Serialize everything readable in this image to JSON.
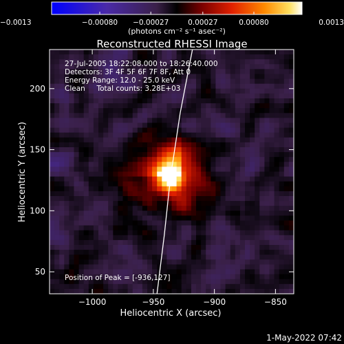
{
  "chart_data": {
    "type": "heatmap",
    "title": "Reconstructed RHESSI Image",
    "xlabel": "Heliocentric X (arcsec)",
    "ylabel": "Heliocentric Y (arcsec)",
    "xlim": [
      -1035,
      -835
    ],
    "ylim": [
      32,
      232
    ],
    "x_ticks": [
      -1000,
      -950,
      -900,
      -850
    ],
    "x_tick_labels": [
      "−1000",
      "−950",
      "−900",
      "−850"
    ],
    "y_ticks": [
      50,
      100,
      150,
      200
    ],
    "y_tick_labels": [
      "50",
      "100",
      "150",
      "200"
    ],
    "colorbar": {
      "range": [
        -0.0013,
        0.0013
      ],
      "ticks": [
        -0.0013,
        -0.0008,
        -0.00027,
        0.00027,
        0.0008,
        0.0013
      ],
      "tick_labels": [
        "−0.0013",
        "−0.00080",
        "−0.00027",
        "0.00027",
        "0.00080",
        "0.0013"
      ],
      "unit_label": "(photons cm⁻² s⁻¹ asec⁻²)"
    },
    "annotations": [
      "27-Jul-2005 18:22:08.000 to 18:26:40.000",
      "Detectors: 3F 4F 5F 6F 7F 8F, Att 0",
      "Energy Range: 12.0 - 25.0 keV",
      "Clean     Total counts: 3.28E+03"
    ],
    "peak_label": "Position of Peak = [-936,127]",
    "peak": {
      "x": -936,
      "y": 127,
      "value": 0.0013
    },
    "limb_points": [
      [
        -947,
        32
      ],
      [
        -941,
        80
      ],
      [
        -936,
        127
      ],
      [
        -928,
        180
      ],
      [
        -918,
        232
      ]
    ]
  },
  "footer": {
    "timestamp": "1-May-2022 07:42"
  }
}
